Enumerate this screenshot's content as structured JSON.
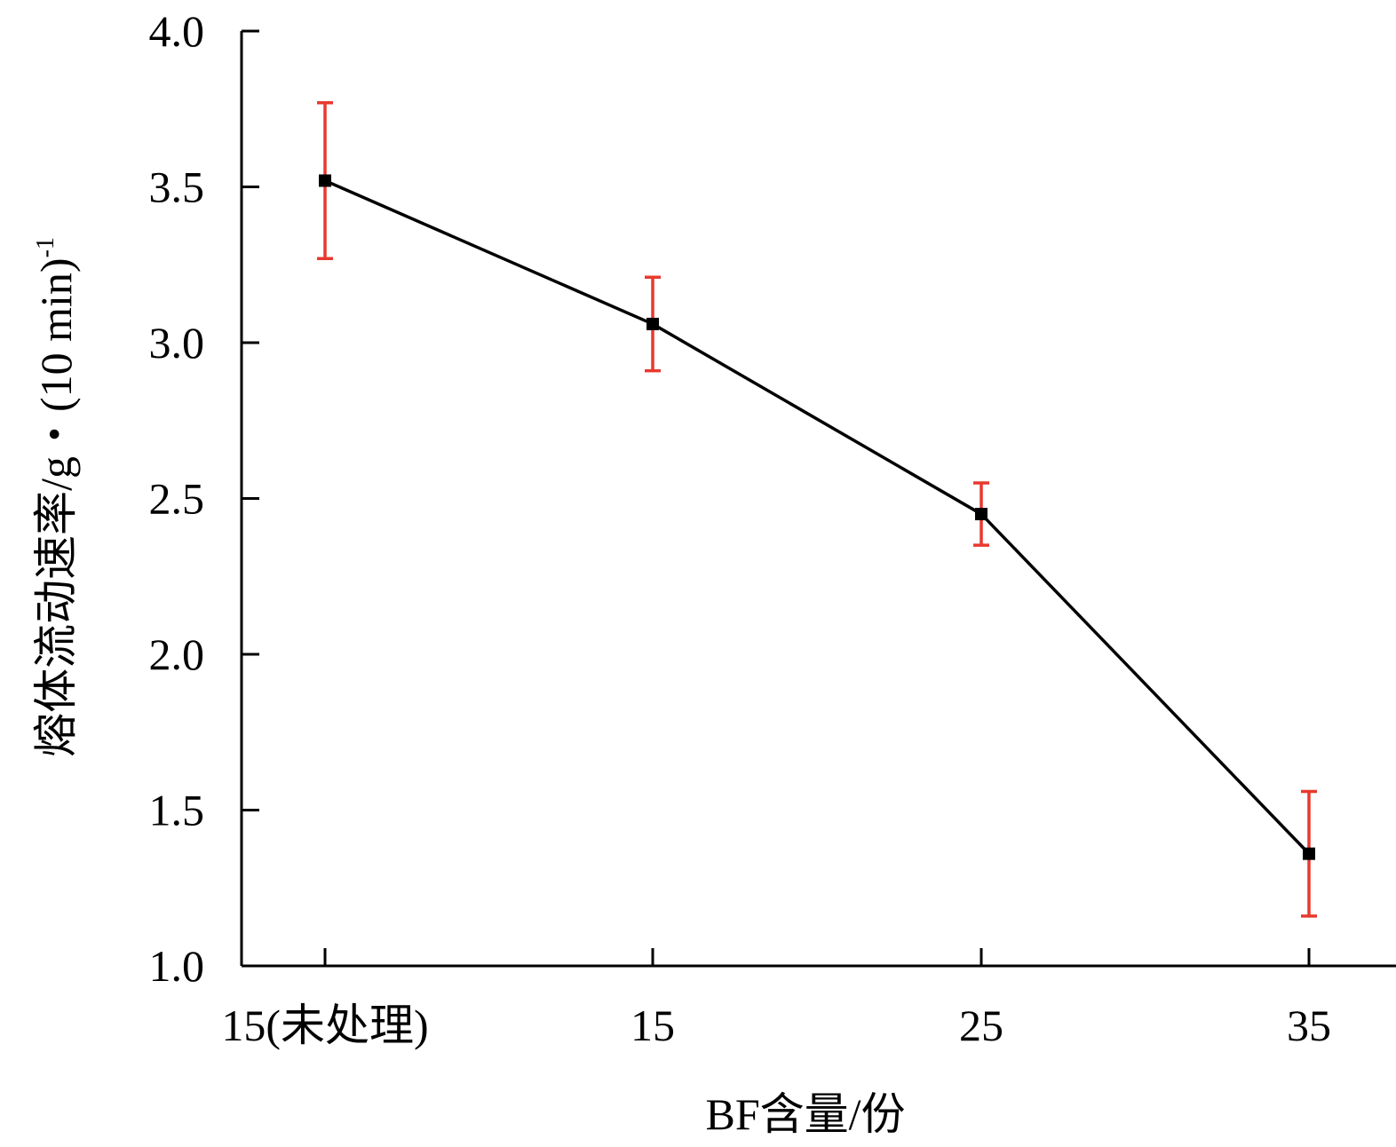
{
  "chart_data": {
    "type": "line",
    "title": "",
    "xlabel": "BF含量/份",
    "ylabel": "熔体流动速率/g・(10 min)",
    "ylabel_superscript": "-1",
    "categories": [
      "15(未处理)",
      "15",
      "25",
      "35"
    ],
    "series": [
      {
        "values": [
          3.52,
          3.06,
          2.45,
          1.36
        ],
        "error": [
          0.25,
          0.15,
          0.1,
          0.2
        ],
        "line_color": "#000000",
        "marker_color": "#000000",
        "error_bar_color": "#e8392e"
      }
    ],
    "ylim": [
      1.0,
      4.0
    ],
    "yticks": [
      "1.0",
      "1.5",
      "2.0",
      "2.5",
      "3.0",
      "3.5",
      "4.0"
    ],
    "grid": false,
    "legend": "none"
  }
}
